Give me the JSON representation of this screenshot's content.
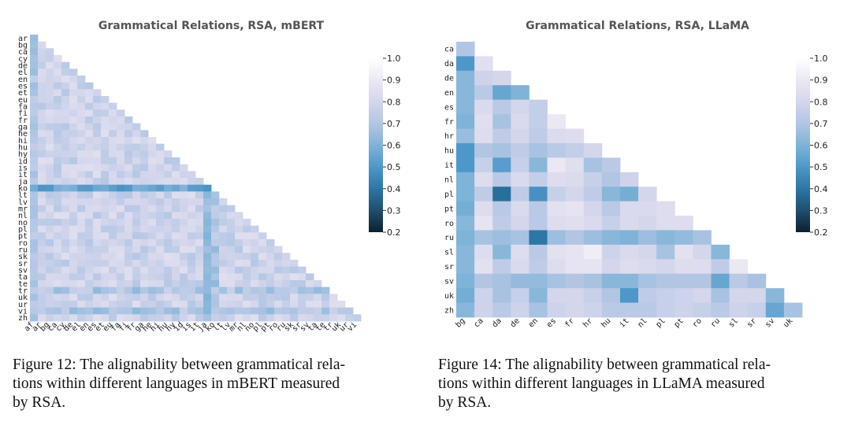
{
  "chart_data": [
    {
      "type": "heatmap",
      "title": "Grammatical Relations, RSA, mBERT",
      "languages": [
        "ar",
        "bg",
        "ca",
        "cy",
        "de",
        "el",
        "en",
        "es",
        "et",
        "eu",
        "fa",
        "fi",
        "fr",
        "ga",
        "he",
        "hi",
        "hu",
        "hy",
        "id",
        "is",
        "it",
        "ja",
        "ko",
        "lt",
        "lv",
        "mr",
        "nl",
        "no",
        "pl",
        "pt",
        "ro",
        "ru",
        "sk",
        "sr",
        "sv",
        "ta",
        "te",
        "tr",
        "uk",
        "ur",
        "vi",
        "zh"
      ],
      "x_categories": [
        "af",
        "ar",
        "bg",
        "ca",
        "cy",
        "de",
        "el",
        "en",
        "es",
        "et",
        "eu",
        "fa",
        "fi",
        "fr",
        "ga",
        "he",
        "hi",
        "hu",
        "hy",
        "id",
        "is",
        "it",
        "ja",
        "ko",
        "lt",
        "lv",
        "mr",
        "nl",
        "no",
        "pl",
        "pt",
        "ro",
        "ru",
        "sk",
        "sr",
        "sv",
        "ta",
        "te",
        "tr",
        "uk",
        "ur",
        "vi"
      ],
      "y_categories": [
        "ar",
        "bg",
        "ca",
        "cy",
        "de",
        "el",
        "en",
        "es",
        "et",
        "eu",
        "fa",
        "fi",
        "fr",
        "ga",
        "he",
        "hi",
        "hu",
        "hy",
        "id",
        "is",
        "it",
        "ja",
        "ko",
        "lt",
        "lv",
        "mr",
        "nl",
        "no",
        "pl",
        "pt",
        "ro",
        "ru",
        "sk",
        "sr",
        "sv",
        "ta",
        "te",
        "tr",
        "uk",
        "ur",
        "vi",
        "zh"
      ],
      "mask": "lower-triangle",
      "value_range": [
        0.2,
        1.0
      ],
      "base_value": 0.78,
      "notes_low_similarity": {
        "ko_row": 0.55,
        "ja_column": 0.6,
        "af_column": 0.65
      },
      "colorbar_ticks": [
        "1.0",
        "0.9",
        "0.8",
        "0.7",
        "0.6",
        "0.5",
        "0.4",
        "0.3",
        "0.2"
      ],
      "colormap": [
        "#0b2030",
        "#1f4e6e",
        "#2c77a6",
        "#4e98c9",
        "#7fb3d8",
        "#b2c6e4",
        "#d4d6ec",
        "#ebe8f3",
        "#ffffff"
      ]
    },
    {
      "type": "heatmap",
      "title": "Grammatical Relations, RSA, LLaMA",
      "x_categories": [
        "bg",
        "ca",
        "da",
        "de",
        "en",
        "es",
        "fr",
        "hr",
        "hu",
        "it",
        "nl",
        "pl",
        "pt",
        "ro",
        "ru",
        "sl",
        "sr",
        "sv",
        "uk"
      ],
      "y_categories": [
        "ca",
        "da",
        "de",
        "en",
        "es",
        "fr",
        "hr",
        "hu",
        "it",
        "nl",
        "pl",
        "pt",
        "ro",
        "ru",
        "sl",
        "sr",
        "sv",
        "uk",
        "zh"
      ],
      "mask": "lower-triangle",
      "value_range": [
        0.2,
        1.0
      ],
      "rows": [
        [
          0.7
        ],
        [
          0.5,
          0.85
        ],
        [
          0.62,
          0.78,
          0.8
        ],
        [
          0.62,
          0.72,
          0.55,
          0.6
        ],
        [
          0.62,
          0.82,
          0.72,
          0.8,
          0.75
        ],
        [
          0.6,
          0.85,
          0.68,
          0.82,
          0.75,
          0.9
        ],
        [
          0.65,
          0.84,
          0.74,
          0.8,
          0.74,
          0.83,
          0.84
        ],
        [
          0.5,
          0.7,
          0.68,
          0.74,
          0.68,
          0.72,
          0.75,
          0.8
        ],
        [
          0.5,
          0.76,
          0.52,
          0.76,
          0.62,
          0.9,
          0.85,
          0.68,
          0.72
        ],
        [
          0.6,
          0.84,
          0.72,
          0.82,
          0.75,
          0.84,
          0.83,
          0.76,
          0.7,
          0.78
        ],
        [
          0.6,
          0.74,
          0.38,
          0.74,
          0.48,
          0.76,
          0.8,
          0.74,
          0.62,
          0.58,
          0.8
        ],
        [
          0.58,
          0.84,
          0.72,
          0.82,
          0.72,
          0.86,
          0.88,
          0.8,
          0.72,
          0.82,
          0.82,
          0.84
        ],
        [
          0.62,
          0.88,
          0.74,
          0.8,
          0.72,
          0.84,
          0.85,
          0.82,
          0.76,
          0.82,
          0.8,
          0.84,
          0.84
        ],
        [
          0.6,
          0.68,
          0.66,
          0.68,
          0.4,
          0.66,
          0.7,
          0.66,
          0.62,
          0.6,
          0.66,
          0.62,
          0.64,
          0.68
        ],
        [
          0.62,
          0.84,
          0.62,
          0.84,
          0.72,
          0.86,
          0.88,
          0.92,
          0.78,
          0.82,
          0.8,
          0.68,
          0.86,
          0.8,
          0.62
        ],
        [
          0.62,
          0.86,
          0.74,
          0.82,
          0.74,
          0.84,
          0.88,
          0.88,
          0.8,
          0.84,
          0.82,
          0.8,
          0.84,
          0.84,
          0.74,
          0.9
        ],
        [
          0.6,
          0.7,
          0.68,
          0.64,
          0.64,
          0.68,
          0.7,
          0.68,
          0.62,
          0.62,
          0.68,
          0.7,
          0.7,
          0.7,
          0.55,
          0.72,
          0.68
        ],
        [
          0.58,
          0.78,
          0.68,
          0.76,
          0.62,
          0.8,
          0.8,
          0.76,
          0.7,
          0.5,
          0.74,
          0.76,
          0.78,
          0.8,
          0.68,
          0.8,
          0.8,
          0.62
        ],
        [
          0.62,
          0.78,
          0.72,
          0.78,
          0.68,
          0.78,
          0.8,
          0.78,
          0.72,
          0.72,
          0.72,
          0.76,
          0.78,
          0.76,
          0.72,
          0.78,
          0.76,
          0.55,
          0.68
        ]
      ],
      "colorbar_ticks": [
        "1.0",
        "0.9",
        "0.8",
        "0.7",
        "0.6",
        "0.5",
        "0.4",
        "0.3",
        "0.2"
      ],
      "colormap": [
        "#0b2030",
        "#1f4e6e",
        "#2c77a6",
        "#4e98c9",
        "#7fb3d8",
        "#b2c6e4",
        "#d4d6ec",
        "#ebe8f3",
        "#ffffff"
      ]
    }
  ],
  "captions": {
    "left": [
      "Figure 12: The alignability between grammatical rela-",
      "tions within different languages in mBERT measured",
      "by RSA."
    ],
    "right": [
      "Figure 14: The alignability between grammatical rela-",
      "tions within different languages in LLaMA measured",
      "by RSA."
    ]
  }
}
